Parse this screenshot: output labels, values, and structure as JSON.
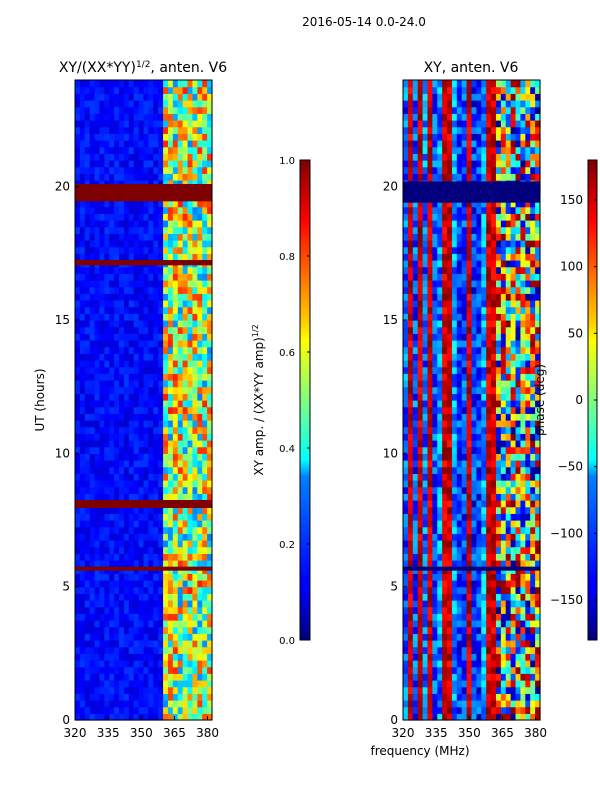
{
  "suptitle": "2016-05-14 0.0-24.0",
  "xlabel": "frequency (MHz)",
  "chart_data": [
    {
      "type": "heatmap",
      "id": "amp",
      "title": "XY/(XX*YY)",
      "title_sup": "1/2",
      "title_tail": ", anten. V6",
      "xlim": [
        320,
        382
      ],
      "ylim": [
        0,
        24
      ],
      "xticks": [
        320,
        335,
        350,
        365,
        380
      ],
      "yticks": [
        0,
        5,
        10,
        15,
        20
      ],
      "ylabel": "UT (hours)",
      "colorbar": {
        "label_main": "XY amp. / (XX*YY amp)",
        "label_sup": "1/2",
        "range": [
          0.0,
          1.0
        ],
        "ticks": [
          "0.0",
          "0.2",
          "0.4",
          "0.6",
          "0.8",
          "1.0"
        ],
        "colormap": "jet"
      },
      "flagged_bands_ut": [
        [
          19.45,
          20.1
        ],
        [
          17.05,
          17.25
        ],
        [
          7.95,
          8.25
        ],
        [
          5.6,
          5.75
        ]
      ],
      "active_band_mhz": [
        359,
        382
      ]
    },
    {
      "type": "heatmap",
      "id": "phase",
      "title": "XY, anten. V6",
      "xlim": [
        320,
        382
      ],
      "ylim": [
        0,
        24
      ],
      "xticks": [
        320,
        335,
        350,
        365,
        380
      ],
      "yticks": [
        0,
        5,
        10,
        15,
        20
      ],
      "colorbar": {
        "label_main": "phase (deg)",
        "range": [
          -180,
          180
        ],
        "ticks": [
          "−150",
          "−100",
          "−50",
          "0",
          "50",
          "100",
          "150"
        ],
        "colormap": "jet"
      },
      "flagged_bands_ut": [
        [
          19.4,
          20.2
        ],
        [
          5.6,
          5.75
        ]
      ]
    }
  ]
}
